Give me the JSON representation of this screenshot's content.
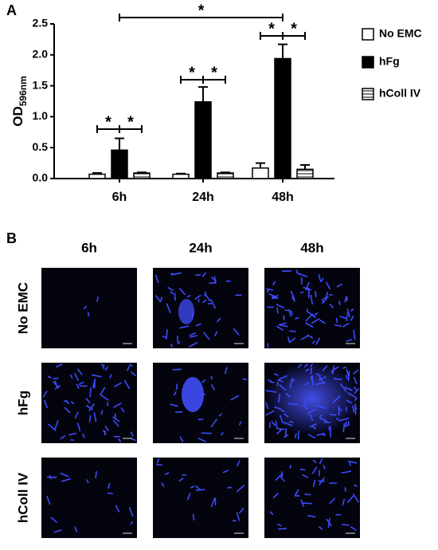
{
  "chart_data": {
    "type": "bar",
    "panel_label": "A",
    "y_label": "OD",
    "y_label_sub": "596nm",
    "categories": [
      "6h",
      "24h",
      "48h"
    ],
    "series": [
      {
        "name": "No EMC",
        "color": "#ffffff",
        "values": [
          0.07,
          0.07,
          0.17
        ],
        "errors": [
          0.02,
          0.01,
          0.08
        ]
      },
      {
        "name": "hFg",
        "color": "#000000",
        "values": [
          0.46,
          1.24,
          1.94
        ],
        "errors": [
          0.19,
          0.24,
          0.23
        ]
      },
      {
        "name": "hColl IV",
        "color": "#ffffff",
        "hatch": "horizontal",
        "values": [
          0.09,
          0.09,
          0.15
        ],
        "errors": [
          0.01,
          0.01,
          0.07
        ]
      }
    ],
    "ylim": [
      0,
      2.5
    ],
    "yticks": [
      {
        "value": 0,
        "label": "0.0"
      },
      0.5,
      {
        "value": 1,
        "label": "1.0"
      },
      1.5,
      {
        "value": 2,
        "label": "2.0"
      },
      2.5
    ],
    "annotations": [
      "*",
      "*",
      "*",
      "*",
      "*",
      "*",
      "*"
    ],
    "legend": "right"
  },
  "panel_b": {
    "panel_label": "B",
    "columns": [
      "6h",
      "24h",
      "48h"
    ],
    "rows": [
      "No EMC",
      "hFg",
      "hColl IV"
    ]
  }
}
